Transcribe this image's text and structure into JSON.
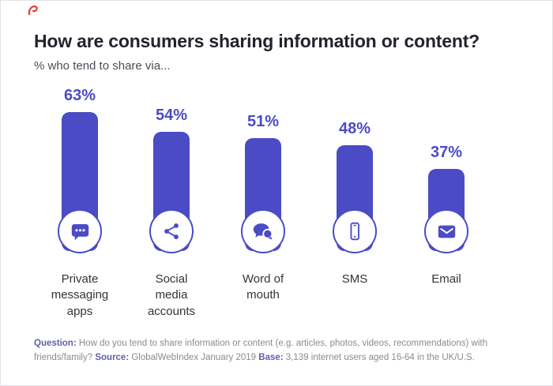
{
  "chart_data": {
    "type": "bar",
    "title": "How are consumers sharing information or content?",
    "subtitle": "% who tend to share via...",
    "categories": [
      "Private messaging apps",
      "Social media accounts",
      "Word of mouth",
      "SMS",
      "Email"
    ],
    "values": [
      63,
      54,
      51,
      48,
      37
    ],
    "value_labels": [
      "63%",
      "54%",
      "51%",
      "48%",
      "37%"
    ],
    "icons": [
      "chat-bubble-dots",
      "share-network",
      "speech-bubbles",
      "smartphone",
      "envelope"
    ],
    "bar_color": "#4b4bc6",
    "ylim": [
      0,
      70
    ],
    "grid": false,
    "legend": false
  },
  "footer": {
    "segments": [
      {
        "text": "Question: ",
        "bold": true
      },
      {
        "text": "How do you tend to share information or content (e.g. articles, photos, videos, recommendations) with friends/family? ",
        "bold": false
      },
      {
        "text": "Source: ",
        "bold": true
      },
      {
        "text": "GlobalWebIndex January 2019 ",
        "bold": false
      },
      {
        "text": "Base: ",
        "bold": true
      },
      {
        "text": "3,139 internet users aged 16-64 in the UK/U.S.",
        "bold": false
      }
    ]
  },
  "decor": {
    "logo_mark_color": "#e8453c"
  }
}
